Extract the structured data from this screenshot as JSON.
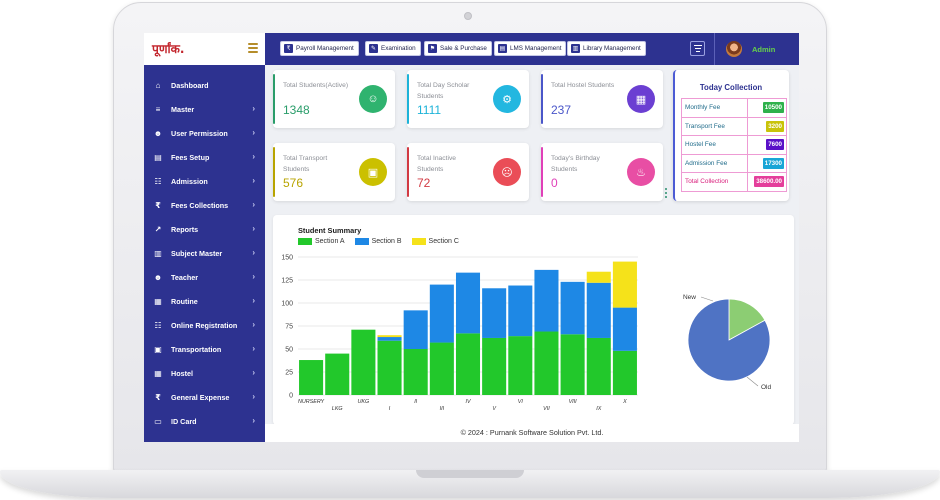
{
  "brand": {
    "logo_text": "पूर्णांक."
  },
  "sidebar": {
    "items": [
      {
        "label": "Dashboard",
        "icon": "home-icon",
        "glyph": "⌂",
        "chevron": false
      },
      {
        "label": "Master",
        "icon": "sliders-icon",
        "glyph": "≡",
        "chevron": true
      },
      {
        "label": "User Permission",
        "icon": "user-lock-icon",
        "glyph": "☻",
        "chevron": true
      },
      {
        "label": "Fees Setup",
        "icon": "credit-card-icon",
        "glyph": "▤",
        "chevron": true
      },
      {
        "label": "Admission",
        "icon": "checklist-icon",
        "glyph": "☷",
        "chevron": true
      },
      {
        "label": "Fees Collections",
        "icon": "rupee-icon",
        "glyph": "₹",
        "chevron": true
      },
      {
        "label": "Reports",
        "icon": "chart-icon",
        "glyph": "↗",
        "chevron": true
      },
      {
        "label": "Subject Master",
        "icon": "book-icon",
        "glyph": "▥",
        "chevron": true
      },
      {
        "label": "Teacher",
        "icon": "teacher-icon",
        "glyph": "☻",
        "chevron": true
      },
      {
        "label": "Routine",
        "icon": "table-icon",
        "glyph": "▦",
        "chevron": true
      },
      {
        "label": "Online Registration",
        "icon": "checklist-icon",
        "glyph": "☷",
        "chevron": true
      },
      {
        "label": "Transportation",
        "icon": "bus-icon",
        "glyph": "▣",
        "chevron": true
      },
      {
        "label": "Hostel",
        "icon": "building-icon",
        "glyph": "▦",
        "chevron": true
      },
      {
        "label": "General Expense",
        "icon": "rupee-icon",
        "glyph": "₹",
        "chevron": true
      },
      {
        "label": "ID Card",
        "icon": "id-card-icon",
        "glyph": "▭",
        "chevron": true
      }
    ]
  },
  "topbar": {
    "buttons": [
      {
        "label": "Payroll Management",
        "icon": "payroll-icon",
        "glyph": "₹"
      },
      {
        "label": "Examination",
        "icon": "exam-icon",
        "glyph": "✎"
      },
      {
        "label": "Sale & Purchase",
        "icon": "cart-icon",
        "glyph": "⚑"
      },
      {
        "label": "LMS Management",
        "icon": "lms-icon",
        "glyph": "▤"
      },
      {
        "label": "Library Management",
        "icon": "library-icon",
        "glyph": "▥"
      }
    ],
    "user_name": "Admin"
  },
  "cards": [
    {
      "label": "Total Students(Active)",
      "value": "1348",
      "color": "#2a9d6a",
      "circle": "#2fb36f",
      "glyph": "☺"
    },
    {
      "label": "Total Day Scholar Students",
      "value": "1111",
      "color": "#1db3d8",
      "circle": "#23b7e0",
      "glyph": "⚙"
    },
    {
      "label": "Total Hostel Students",
      "value": "237",
      "color": "#4a56c9",
      "circle": "#6b3fd2",
      "glyph": "▦"
    },
    {
      "label": "Total Transport Students",
      "value": "576",
      "color": "#b8a400",
      "circle": "#cbc000",
      "glyph": "▣"
    },
    {
      "label": "Total Inactive Students",
      "value": "72",
      "color": "#d23a43",
      "circle": "#ea4d57",
      "glyph": "☹"
    },
    {
      "label": "Today's Birthday Students",
      "value": "0",
      "color": "#e040b8",
      "circle": "#e84ea4",
      "glyph": "♨"
    }
  ],
  "collection": {
    "title": "Today Collection",
    "rows": [
      {
        "label": "Monthly Fee",
        "value": "10500",
        "bg": "#2fb14c",
        "fg": "#ffffff"
      },
      {
        "label": "Transport Fee",
        "value": "3200",
        "bg": "#c9c30a",
        "fg": "#ffffff"
      },
      {
        "label": "Hostel Fee",
        "value": "7600",
        "bg": "#5a10c8",
        "fg": "#ffffff"
      },
      {
        "label": "Admission Fee",
        "value": "17300",
        "bg": "#19a5d6",
        "fg": "#ffffff"
      },
      {
        "label": "Total Collection",
        "value": "38600.00",
        "bg": "#e43e9b",
        "fg": "#ffffff"
      }
    ]
  },
  "chart_data": [
    {
      "type": "bar",
      "stacked": true,
      "title": "Student Summary",
      "categories": [
        "NURSERY",
        "LKG",
        "UKG",
        "I",
        "II",
        "III",
        "IV",
        "V",
        "VI",
        "VII",
        "VIII",
        "IX",
        "X"
      ],
      "series": [
        {
          "name": "Section A",
          "color": "#22c82b",
          "values": [
            38,
            45,
            71,
            59,
            50,
            57,
            67,
            62,
            64,
            69,
            66,
            62,
            48
          ]
        },
        {
          "name": "Section B",
          "color": "#1e88e5",
          "values": [
            0,
            0,
            0,
            4,
            42,
            63,
            66,
            54,
            55,
            67,
            57,
            60,
            47
          ]
        },
        {
          "name": "Section C",
          "color": "#f5e21a",
          "values": [
            0,
            0,
            0,
            2,
            0,
            0,
            0,
            0,
            0,
            0,
            0,
            12,
            50
          ]
        }
      ],
      "ylim": [
        0,
        150
      ],
      "yticks": [
        0,
        25,
        50,
        75,
        100,
        125,
        150
      ],
      "grid": true,
      "legend": "top-left"
    },
    {
      "type": "pie",
      "labels": [
        "New",
        "Old"
      ],
      "values": [
        17,
        83
      ],
      "colors": [
        "#8ccd73",
        "#4f73c4"
      ]
    }
  ],
  "footer": {
    "text": "© 2024 : Purnank Software Solution Pvt. Ltd."
  }
}
